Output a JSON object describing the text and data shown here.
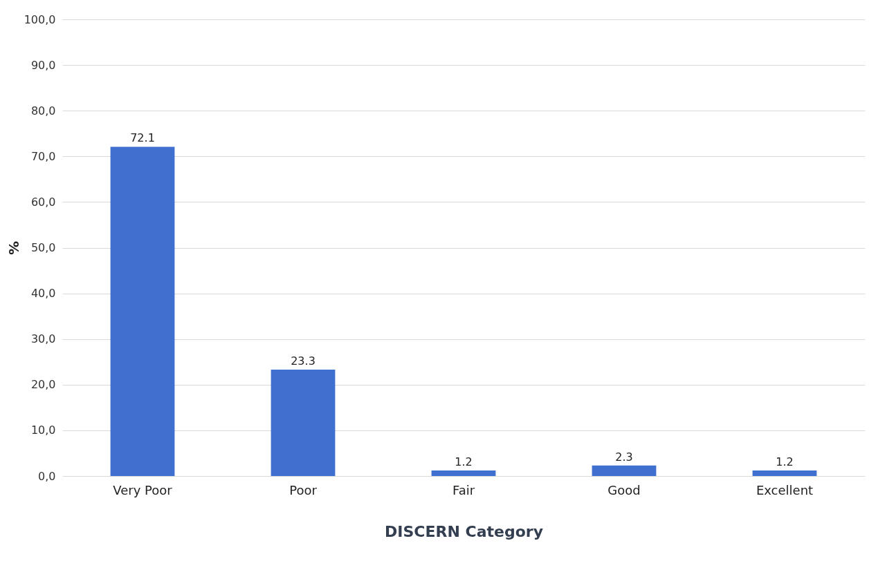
{
  "chart_data": {
    "type": "bar",
    "xlabel": "DISCERN Category",
    "ylabel": "%",
    "categories": [
      "Very Poor",
      "Poor",
      "Fair",
      "Good",
      "Excellent"
    ],
    "values": [
      72.1,
      23.3,
      1.2,
      2.3,
      1.2
    ],
    "color": "#3f6fcf",
    "ylim": [
      0,
      100
    ],
    "yticks": [
      {
        "value": 0,
        "label": "0,0"
      },
      {
        "value": 10,
        "label": "10,0"
      },
      {
        "value": 20,
        "label": "20,0"
      },
      {
        "value": 30,
        "label": "30,0"
      },
      {
        "value": 40,
        "label": "40,0"
      },
      {
        "value": 50,
        "label": "50,0"
      },
      {
        "value": 60,
        "label": "60,0"
      },
      {
        "value": 70,
        "label": "70,0"
      },
      {
        "value": 80,
        "label": "80,0"
      },
      {
        "value": 90,
        "label": "90,0"
      },
      {
        "value": 100,
        "label": "100,0"
      }
    ],
    "grid": "y",
    "data_labels": true
  }
}
